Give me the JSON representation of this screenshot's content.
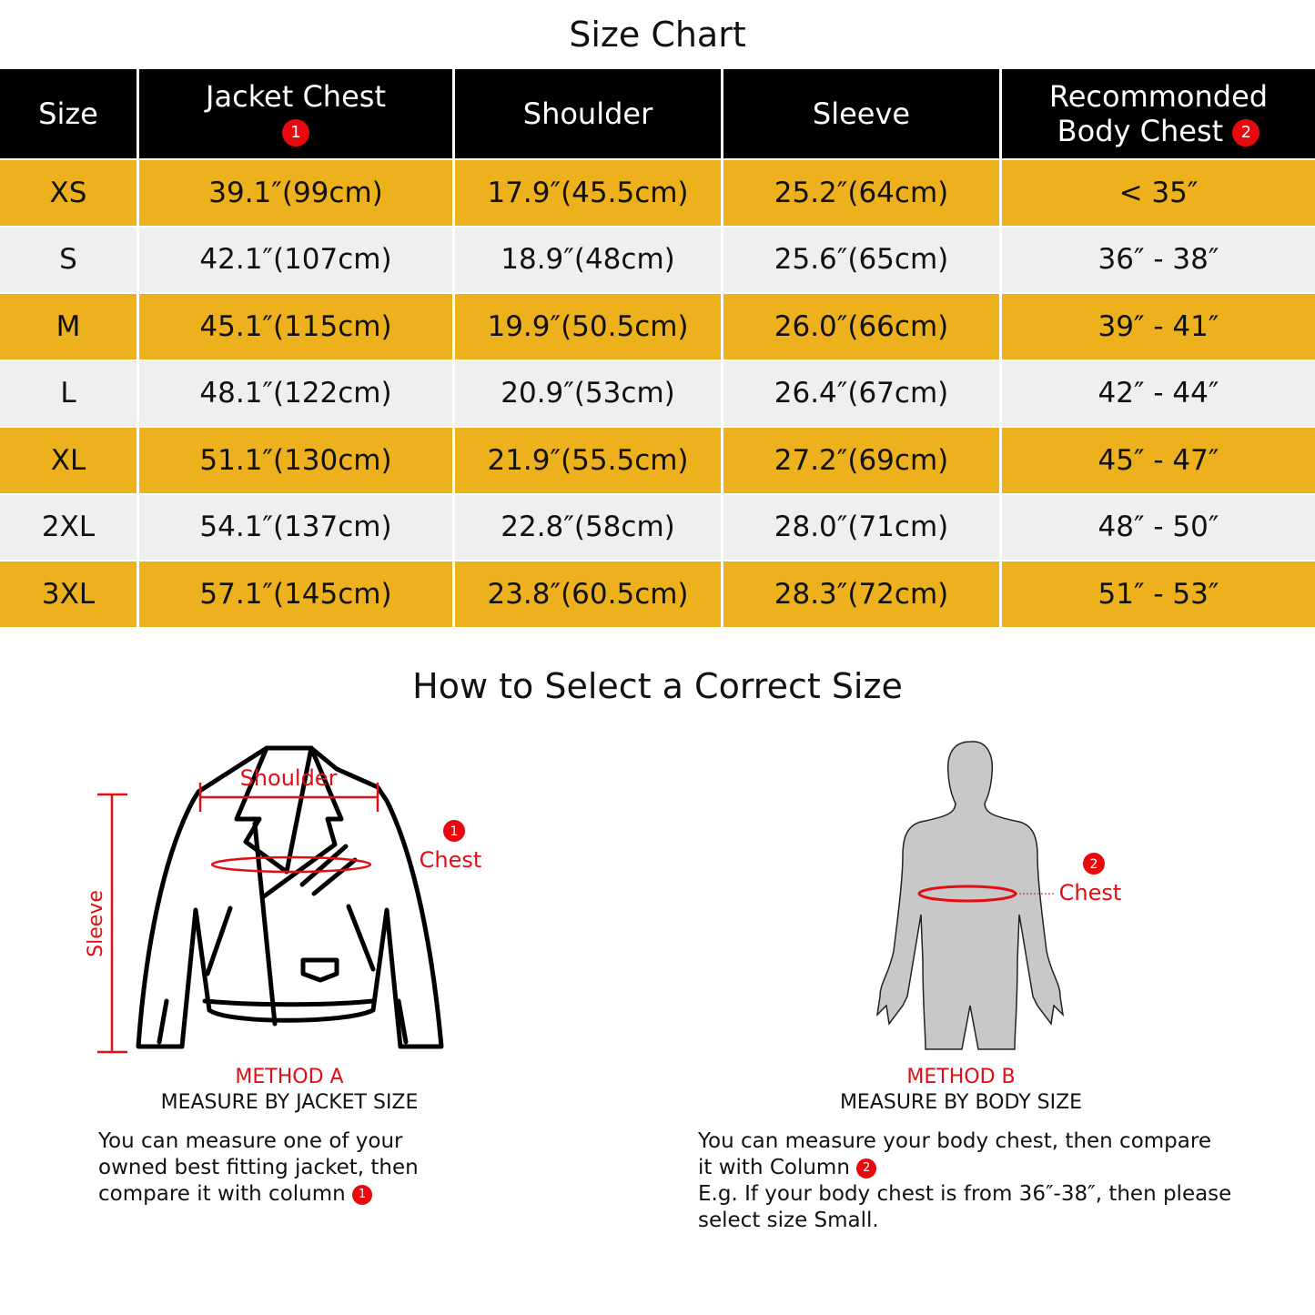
{
  "title": "Size Chart",
  "table": {
    "headers": [
      "Size",
      "Jacket Chest",
      "Shoulder",
      "Sleeve",
      "Recommonded",
      "Body  Chest"
    ],
    "header_badges": [
      "1",
      "2"
    ],
    "rows": [
      [
        "XS",
        "39.1″(99cm)",
        "17.9″(45.5cm)",
        "25.2″(64cm)",
        "< 35″"
      ],
      [
        "S",
        "42.1″(107cm)",
        "18.9″(48cm)",
        "25.6″(65cm)",
        "36″ - 38″"
      ],
      [
        "M",
        "45.1″(115cm)",
        "19.9″(50.5cm)",
        "26.0″(66cm)",
        "39″ - 41″"
      ],
      [
        "L",
        "48.1″(122cm)",
        "20.9″(53cm)",
        "26.4″(67cm)",
        "42″ - 44″"
      ],
      [
        "XL",
        "51.1″(130cm)",
        "21.9″(55.5cm)",
        "27.2″(69cm)",
        "45″ - 47″"
      ],
      [
        "2XL",
        "54.1″(137cm)",
        "22.8″(58cm)",
        "28.0″(71cm)",
        "48″ - 50″"
      ],
      [
        "3XL",
        "57.1″(145cm)",
        "23.8″(60.5cm)",
        "28.3″(72cm)",
        "51″ - 53″"
      ]
    ]
  },
  "colors": {
    "header": "#000000",
    "row_odd": "#ECB11D",
    "row_even": "#EFEFEF",
    "accent_red": "#E30E13"
  },
  "guide_title": "How to Select a Correct Size",
  "method_a": {
    "labels": {
      "shoulder": "Shoulder",
      "sleeve": "Sleeve",
      "chest": "Chest",
      "badge": "1"
    },
    "title": "METHOD A",
    "subtitle": "MEASURE BY JACKET SIZE",
    "text1": "You can measure one of your",
    "text2": "owned best fitting jacket, then",
    "text3": "compare it with column",
    "badge": "1"
  },
  "method_b": {
    "labels": {
      "chest": "Chest",
      "badge": "2"
    },
    "title": "METHOD B",
    "subtitle": "MEASURE BY BODY SIZE",
    "text1": "You can measure your body chest, then compare",
    "text2": "it with Column",
    "badge": "2",
    "text3": "E.g. If your body chest is from 36″-38″, then please",
    "text4": "select size Small."
  }
}
